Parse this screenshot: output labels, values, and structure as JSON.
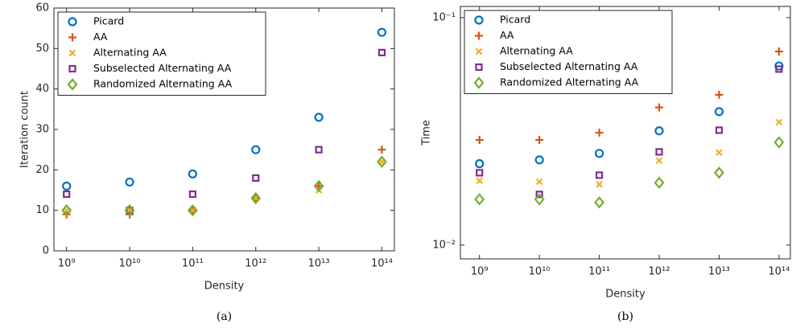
{
  "chart_data": [
    {
      "type": "scatter",
      "caption": "(a)",
      "x_label": "Density",
      "y_label": "Iteration count",
      "x": [
        1000000000,
        10000000000,
        100000000000,
        1000000000000,
        10000000000000,
        100000000000000
      ],
      "xlog": true,
      "ylog": false,
      "xlim": [
        630000000,
        158000000000000
      ],
      "ylim": [
        0,
        60
      ],
      "xticks": [
        {
          "value": 1000000000,
          "label": "10⁹"
        },
        {
          "value": 10000000000,
          "label": "10¹⁰"
        },
        {
          "value": 100000000000,
          "label": "10¹¹"
        },
        {
          "value": 1000000000000,
          "label": "10¹²"
        },
        {
          "value": 10000000000000,
          "label": "10¹³"
        },
        {
          "value": 100000000000000,
          "label": "10¹⁴"
        }
      ],
      "yticks": [
        0,
        10,
        20,
        30,
        40,
        50,
        60
      ],
      "series": [
        {
          "name": "Picard",
          "color": "#0072BD",
          "marker": "circle",
          "values": [
            16,
            17,
            19,
            25,
            33,
            54
          ]
        },
        {
          "name": "AA",
          "color": "#D95319",
          "marker": "plus",
          "values": [
            9,
            9,
            10,
            13,
            16,
            25
          ]
        },
        {
          "name": "Alternating AA",
          "color": "#EDB120",
          "marker": "cross",
          "values": [
            10,
            10,
            10,
            13,
            15,
            22
          ]
        },
        {
          "name": "Subselected Alternating AA",
          "color": "#7E2F8E",
          "marker": "square",
          "values": [
            14,
            10,
            14,
            18,
            25,
            49
          ]
        },
        {
          "name": "Randomized Alternating AA",
          "color": "#77AC30",
          "marker": "diamond",
          "values": [
            10,
            10,
            10,
            13,
            16,
            22
          ]
        }
      ]
    },
    {
      "type": "scatter",
      "caption": "(b)",
      "x_label": "Density",
      "y_label": "Time",
      "x": [
        1000000000,
        10000000000,
        100000000000,
        1000000000000,
        10000000000000,
        100000000000000
      ],
      "xlog": true,
      "ylog": true,
      "xlim": [
        480000000,
        155000000000000
      ],
      "ylim": [
        0.0087,
        0.112
      ],
      "xticks": [
        {
          "value": 1000000000,
          "label": "10⁹"
        },
        {
          "value": 10000000000,
          "label": "10¹⁰"
        },
        {
          "value": 100000000000,
          "label": "10¹¹"
        },
        {
          "value": 1000000000000,
          "label": "10¹²"
        },
        {
          "value": 10000000000000,
          "label": "10¹³"
        },
        {
          "value": 100000000000000,
          "label": "10¹⁴"
        }
      ],
      "yticks": [
        {
          "value": 0.01,
          "label": "10⁻²"
        },
        {
          "value": 0.1,
          "label": "10⁻¹"
        }
      ],
      "series": [
        {
          "name": "Picard",
          "color": "#0072BD",
          "marker": "circle",
          "values": [
            0.0228,
            0.0237,
            0.0253,
            0.0318,
            0.0386,
            0.0613
          ]
        },
        {
          "name": "AA",
          "color": "#D95319",
          "marker": "plus",
          "values": [
            0.029,
            0.029,
            0.0312,
            0.0403,
            0.0458,
            0.071
          ]
        },
        {
          "name": "Alternating AA",
          "color": "#EDB120",
          "marker": "cross",
          "values": [
            0.0192,
            0.019,
            0.0185,
            0.0235,
            0.0255,
            0.0347
          ]
        },
        {
          "name": "Subselected Alternating AA",
          "color": "#7E2F8E",
          "marker": "square",
          "values": [
            0.0208,
            0.0167,
            0.0203,
            0.0257,
            0.032,
            0.0594
          ]
        },
        {
          "name": "Randomized Alternating AA",
          "color": "#77AC30",
          "marker": "diamond",
          "values": [
            0.0159,
            0.0159,
            0.0154,
            0.0188,
            0.0208,
            0.0283
          ]
        }
      ]
    }
  ]
}
